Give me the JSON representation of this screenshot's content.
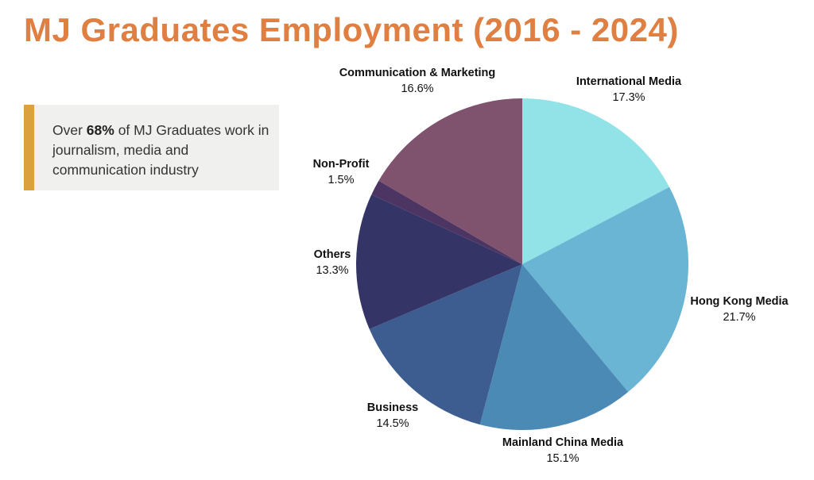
{
  "header": {
    "title": "MJ Graduates Employment (2016 - 2024)"
  },
  "callout": {
    "prefix": "Over ",
    "highlight": "68%",
    "suffix": " of MJ Graduates work in journalism, media and communication industry",
    "bar_color": "#dba13f"
  },
  "chart_data": {
    "type": "pie",
    "title": "MJ Graduates Employment (2016 - 2024)",
    "start": "12 o'clock",
    "direction": "clockwise",
    "slices": [
      {
        "label": "International Media",
        "value": 17.3,
        "display": "17.3%",
        "color": "#92e3e8"
      },
      {
        "label": "Hong Kong Media",
        "value": 21.7,
        "display": "21.7%",
        "color": "#6ab5d4"
      },
      {
        "label": "Mainland China Media",
        "value": 15.1,
        "display": "15.1%",
        "color": "#4c8ab6"
      },
      {
        "label": "Business",
        "value": 14.5,
        "display": "14.5%",
        "color": "#3d5d90"
      },
      {
        "label": "Others",
        "value": 13.3,
        "display": "13.3%",
        "color": "#343467"
      },
      {
        "label": "Non-Profit",
        "value": 1.5,
        "display": "1.5%",
        "color": "#4d3563"
      },
      {
        "label": "Communication & Marketing",
        "value": 16.6,
        "display": "16.6%",
        "color": "#7f536e"
      }
    ]
  }
}
